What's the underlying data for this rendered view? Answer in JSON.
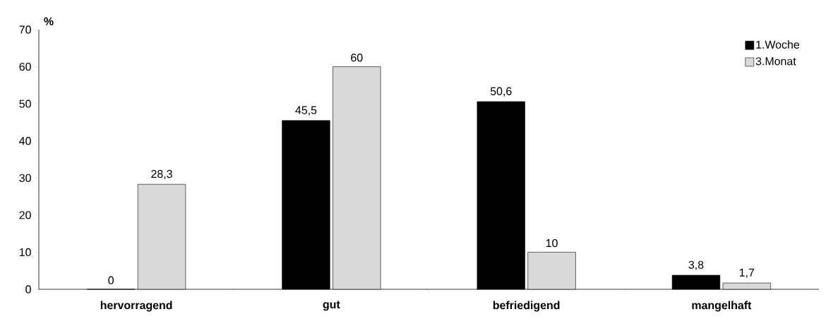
{
  "chart_data": {
    "type": "bar",
    "ylabel": "%",
    "categories": [
      "hervorragend",
      "gut",
      "befriedigend",
      "mangelhaft"
    ],
    "series": [
      {
        "name": "1.Woche",
        "color": "#000000",
        "values": [
          0,
          45.5,
          50.6,
          3.8
        ],
        "value_labels": [
          "0",
          "45,5",
          "50,6",
          "3,8"
        ]
      },
      {
        "name": "3.Monat",
        "color": "#d9d9d9",
        "values": [
          28.3,
          60,
          10,
          1.7
        ],
        "value_labels": [
          "28,3",
          "60",
          "10",
          "1,7"
        ]
      }
    ],
    "ylim": [
      0,
      70
    ],
    "yticks": [
      0,
      10,
      20,
      30,
      40,
      50,
      60,
      70
    ],
    "grid": false,
    "legend": "top right"
  }
}
